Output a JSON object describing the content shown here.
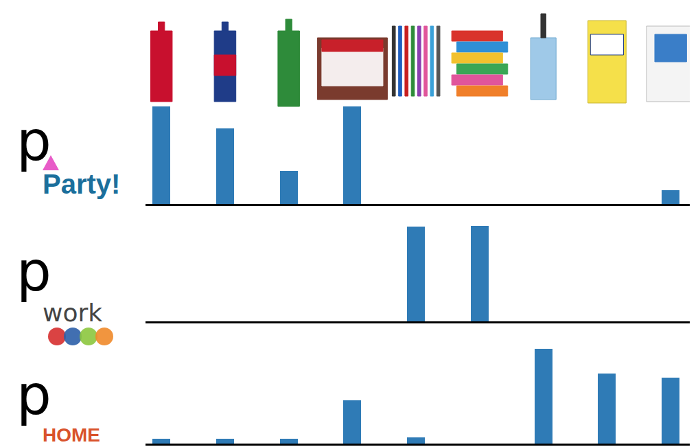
{
  "chart_data": [
    {
      "type": "bar",
      "title": "p",
      "subtitle": "Party!",
      "categories": [
        null,
        null,
        null,
        null,
        null,
        null,
        null,
        null,
        null
      ],
      "values": [
        142,
        110,
        48,
        142,
        0,
        0,
        0,
        0,
        20
      ],
      "color": "#2f7bb6",
      "ylim": [
        0,
        145
      ],
      "grid": false,
      "tick_labels": false
    },
    {
      "type": "bar",
      "title": "p",
      "subtitle": "work",
      "categories": [
        null,
        null,
        null,
        null,
        null,
        null,
        null,
        null,
        null
      ],
      "values": [
        0,
        0,
        0,
        0,
        140,
        141,
        0,
        0,
        0
      ],
      "color": "#2f7bb6",
      "ylim": [
        0,
        145
      ],
      "grid": false,
      "tick_labels": false
    },
    {
      "type": "bar",
      "title": "p",
      "subtitle": "HOME",
      "categories": [
        null,
        null,
        null,
        null,
        null,
        null,
        null,
        null,
        null
      ],
      "values": [
        7,
        7,
        7,
        64,
        9,
        0,
        140,
        103,
        97
      ],
      "color": "#2f7bb6",
      "ylim": [
        0,
        145
      ],
      "grid": false,
      "tick_labels": false
    }
  ]
}
